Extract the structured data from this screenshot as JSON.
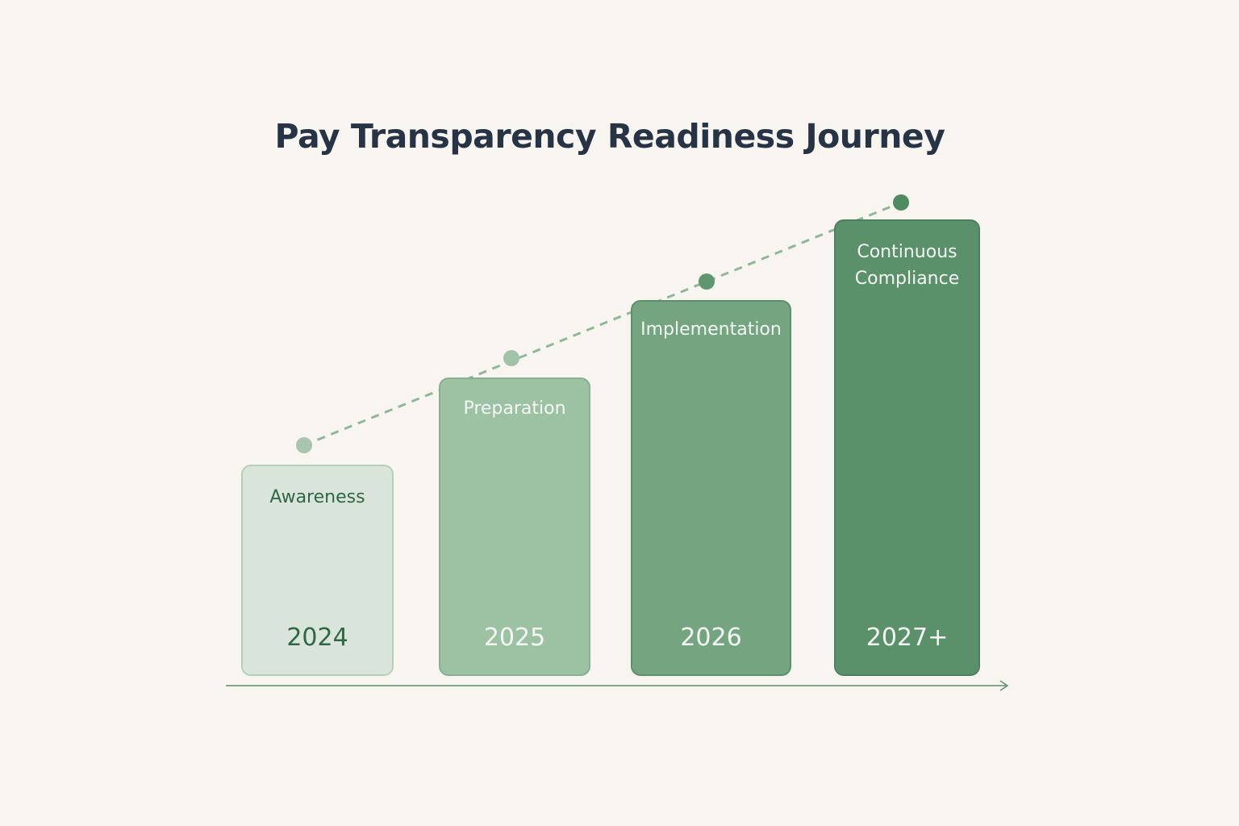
{
  "title": "Pay Transparency Readiness Journey",
  "stages": [
    {
      "label": "Awareness",
      "year": "2024",
      "level": 1,
      "color": "#d9e5da",
      "dot_color": "#a8c6ae"
    },
    {
      "label": "Preparation",
      "year": "2025",
      "level": 2,
      "color": "#9cc1a3",
      "dot_color": "#a3c3a9"
    },
    {
      "label": "Implementation",
      "year": "2026",
      "level": 3,
      "color": "#74a580",
      "dot_color": "#5f9670"
    },
    {
      "label": "Continuous\nCompliance",
      "year": "2027+",
      "level": 4,
      "color": "#5a916a",
      "dot_color": "#4f8a61"
    }
  ],
  "colors": {
    "background": "#f8f5f1",
    "title": "#263445",
    "trend_line": "#8fb79a",
    "axis": "#5d9069"
  }
}
